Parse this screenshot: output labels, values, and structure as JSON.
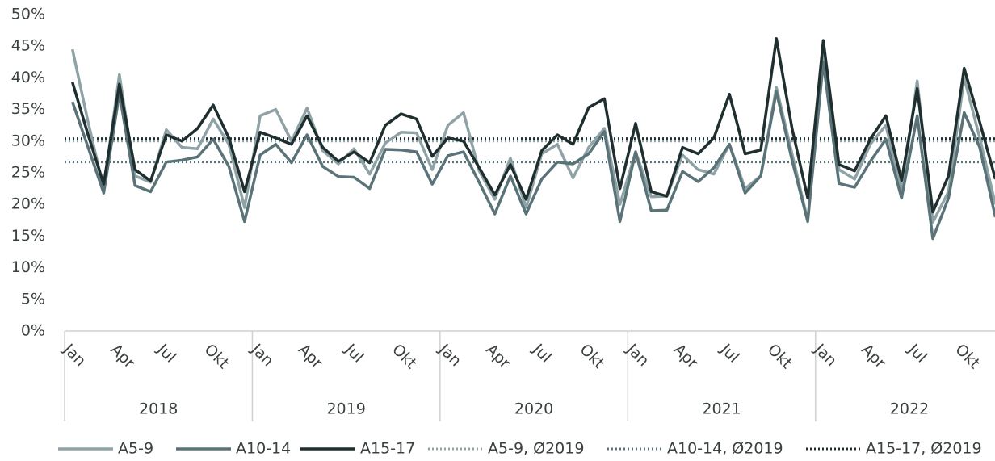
{
  "chart_data": {
    "type": "line",
    "categories": [
      "Jan",
      null,
      null,
      "Apr",
      null,
      null,
      "Jul",
      null,
      null,
      "Okt",
      null,
      null,
      "Jan",
      null,
      null,
      "Apr",
      null,
      null,
      "Jul",
      null,
      null,
      "Okt",
      null,
      null,
      "Jan",
      null,
      null,
      "Apr",
      null,
      null,
      "Jul",
      null,
      null,
      "Okt",
      null,
      null,
      "Jan",
      null,
      null,
      "Apr",
      null,
      null,
      "Jul",
      null,
      null,
      "Okt",
      null,
      null,
      "Jan",
      null,
      null,
      "Apr",
      null,
      null,
      "Jul",
      null,
      null,
      "Okt",
      null,
      null
    ],
    "years": [
      "2018",
      "2019",
      "2020",
      "2021",
      "2022"
    ],
    "series": [
      {
        "name": "A5-9",
        "color": "#8fa3a6",
        "values": [
          44.5,
          33,
          22.5,
          40.5,
          24.5,
          23.5,
          31.8,
          29,
          28.8,
          33.5,
          29.5,
          19.5,
          34,
          35,
          30,
          35.2,
          28.5,
          26.4,
          28.8,
          24.8,
          29.7,
          31.4,
          31.3,
          25.5,
          32.5,
          34.5,
          25.3,
          20.8,
          27.3,
          19.5,
          28,
          29.5,
          24.2,
          29,
          32,
          20,
          28.3,
          21.2,
          21.3,
          27.8,
          25.5,
          24.8,
          29.5,
          22.5,
          24.5,
          38.5,
          28,
          17.5,
          44,
          25.5,
          24,
          29.5,
          32.5,
          22,
          39.5,
          17.2,
          22,
          40,
          30.5,
          20
        ]
      },
      {
        "name": "A10-14",
        "color": "#5a7379",
        "values": [
          36.2,
          29,
          21.8,
          37.5,
          23,
          22,
          26.7,
          27,
          27.5,
          30.3,
          26,
          17.3,
          27.8,
          29.5,
          26.6,
          31,
          26,
          24.4,
          24.3,
          22.5,
          28.7,
          28.6,
          28.3,
          23.2,
          27.7,
          28.3,
          23.5,
          18.5,
          24.5,
          18.5,
          24,
          26.7,
          26.4,
          28,
          31.5,
          17.3,
          28.3,
          19,
          19.1,
          25.2,
          23.6,
          25.8,
          29.5,
          21.8,
          24.5,
          37.8,
          27,
          17.3,
          42.5,
          23.3,
          22.7,
          26.8,
          30.3,
          21,
          34,
          14.6,
          21,
          34.5,
          29,
          18
        ]
      },
      {
        "name": "A15-17",
        "color": "#1f2e2f",
        "values": [
          39.3,
          31,
          23.2,
          39,
          25.5,
          23.7,
          31,
          30,
          32,
          35.7,
          30.5,
          22,
          31.4,
          30.5,
          29.5,
          34,
          29,
          26.8,
          28.3,
          26.6,
          32.5,
          34.3,
          33.5,
          27.6,
          30.5,
          30,
          25.8,
          21.5,
          26.3,
          20.8,
          28.5,
          31,
          29.5,
          35.3,
          36.7,
          22.5,
          32.8,
          22,
          21.3,
          29,
          28,
          30.5,
          37.4,
          28,
          28.6,
          46.2,
          32,
          21,
          45.9,
          26.3,
          25.3,
          30.3,
          34,
          23.8,
          38.3,
          18.8,
          24.5,
          41.5,
          33,
          24
        ]
      }
    ],
    "reference_lines": [
      {
        "name": "A5-9, Ø2019",
        "color": "#8fa3a6",
        "value": 30.0
      },
      {
        "name": "A10-14, Ø2019",
        "color": "#5a7379",
        "value": 26.7
      },
      {
        "name": "A15-17, Ø2019",
        "color": "#1f2e2f",
        "value": 30.4
      }
    ],
    "ylim": [
      0,
      50
    ],
    "yticks": [
      {
        "value": 0,
        "label": "0%"
      },
      {
        "value": 5,
        "label": "5%"
      },
      {
        "value": 10,
        "label": "10%"
      },
      {
        "value": 15,
        "label": "15%"
      },
      {
        "value": 20,
        "label": "20%"
      },
      {
        "value": 25,
        "label": "25%"
      },
      {
        "value": 30,
        "label": "30%"
      },
      {
        "value": 35,
        "label": "35%"
      },
      {
        "value": 40,
        "label": "40%"
      },
      {
        "value": 45,
        "label": "45%"
      },
      {
        "value": 50,
        "label": "50%"
      }
    ],
    "legend": "bottom"
  }
}
